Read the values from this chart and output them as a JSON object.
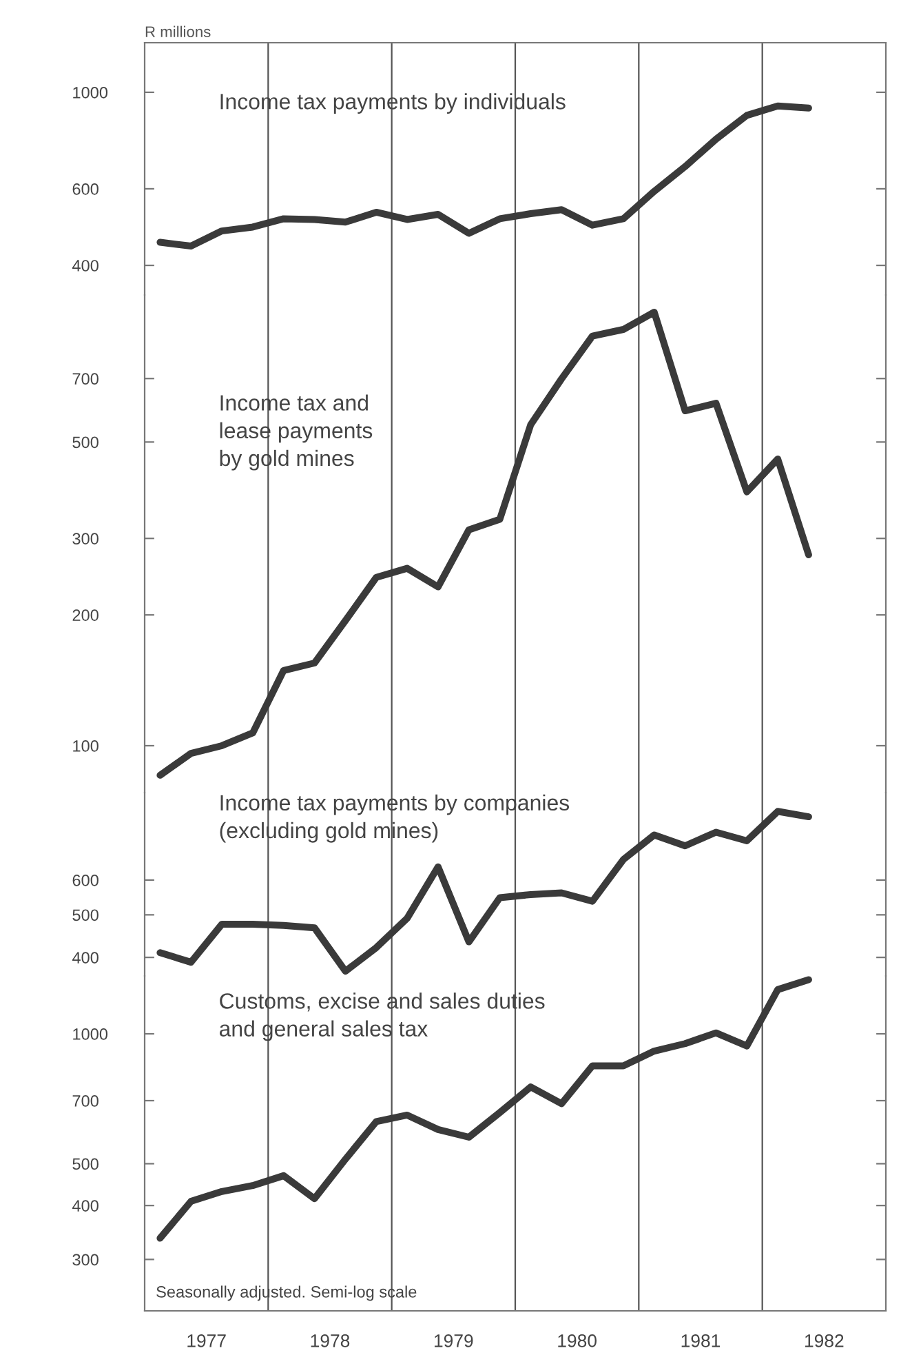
{
  "chart_data": [
    {
      "type": "line",
      "ylabel": "R millions",
      "log": true,
      "xlim": [
        1977,
        1983
      ],
      "ylim": [
        342,
        1300
      ],
      "yticks": [
        400,
        600,
        1000
      ],
      "tick_labels": "y",
      "x": [
        1977.125,
        1977.375,
        1977.625,
        1977.875,
        1978.125,
        1978.375,
        1978.625,
        1978.875,
        1979.125,
        1979.375,
        1979.625,
        1979.875,
        1980.125,
        1980.375,
        1980.625,
        1980.875,
        1981.125,
        1981.375,
        1981.625,
        1981.875,
        1982.125,
        1982.375
      ],
      "ref_lines": [
        {
          "axis": "x",
          "value": 1978
        },
        {
          "axis": "x",
          "value": 1979
        },
        {
          "axis": "x",
          "value": 1980
        },
        {
          "axis": "x",
          "value": 1981
        },
        {
          "axis": "x",
          "value": 1982
        }
      ],
      "series": [
        {
          "name": "Income tax payments by individuals",
          "color": "#3a3a3a",
          "values": [
            452,
            443,
            480,
            490,
            512,
            510,
            503,
            530,
            510,
            524,
            474,
            512,
            526,
            537,
            495,
            512,
            592,
            675,
            780,
            885,
            930,
            920
          ]
        }
      ]
    },
    {
      "type": "line",
      "log": true,
      "xlim": [
        1977,
        1983
      ],
      "ylim": [
        78,
        1090
      ],
      "yticks": [
        100,
        200,
        300,
        500,
        700
      ],
      "tick_labels": "y",
      "x": [
        1977.125,
        1977.375,
        1977.625,
        1977.875,
        1978.125,
        1978.375,
        1978.625,
        1978.875,
        1979.125,
        1979.375,
        1979.625,
        1979.875,
        1980.125,
        1980.375,
        1980.625,
        1980.875,
        1981.125,
        1981.375,
        1981.625,
        1981.875,
        1982.125,
        1982.375
      ],
      "ref_lines": [
        {
          "axis": "x",
          "value": 1978
        },
        {
          "axis": "x",
          "value": 1979
        },
        {
          "axis": "x",
          "value": 1980
        },
        {
          "axis": "x",
          "value": 1981
        },
        {
          "axis": "x",
          "value": 1982
        }
      ],
      "series": [
        {
          "name": "Income tax and\nlease payments\nby gold mines",
          "color": "#3a3a3a",
          "values": [
            85.5,
            96,
            100,
            107,
            149,
            155,
            194,
            244,
            256,
            232,
            314,
            332,
            548,
            699,
            877,
            908,
            995,
            590,
            614,
            384,
            457,
            275
          ]
        }
      ]
    },
    {
      "type": "line",
      "log": true,
      "xlim": [
        1977,
        1983
      ],
      "ylim": [
        363,
        949
      ],
      "yticks": [
        400,
        500,
        600
      ],
      "tick_labels": "y",
      "x": [
        1977.125,
        1977.375,
        1977.625,
        1977.875,
        1978.125,
        1978.375,
        1978.625,
        1978.875,
        1979.125,
        1979.375,
        1979.625,
        1979.875,
        1980.125,
        1980.375,
        1980.625,
        1980.875,
        1981.125,
        1981.375,
        1981.625,
        1981.875,
        1982.125,
        1982.375
      ],
      "ref_lines": [
        {
          "axis": "x",
          "value": 1978
        },
        {
          "axis": "x",
          "value": 1979
        },
        {
          "axis": "x",
          "value": 1980
        },
        {
          "axis": "x",
          "value": 1981
        },
        {
          "axis": "x",
          "value": 1982
        }
      ],
      "series": [
        {
          "name": "Income tax payments by companies\n(excluding gold mines)",
          "color": "#3a3a3a",
          "values": [
            410,
            390,
            476,
            476,
            473,
            467,
            372,
            421,
            491,
            643,
            434,
            547,
            556,
            561,
            537,
            668,
            760,
            718,
            771,
            737,
            860,
            836
          ]
        }
      ]
    },
    {
      "type": "line",
      "log": true,
      "xlim": [
        1977,
        1983
      ],
      "ylim": [
        228,
        1362
      ],
      "yticks": [
        300,
        400,
        500,
        700,
        1000
      ],
      "xticks": [
        {
          "value": 1977.5,
          "label": "1977"
        },
        {
          "value": 1978.5,
          "label": "1978"
        },
        {
          "value": 1979.5,
          "label": "1979"
        },
        {
          "value": 1980.5,
          "label": "1980"
        },
        {
          "value": 1981.5,
          "label": "1981"
        },
        {
          "value": 1982.5,
          "label": "1982"
        }
      ],
      "x": [
        1977.125,
        1977.375,
        1977.625,
        1977.875,
        1978.125,
        1978.375,
        1978.625,
        1978.875,
        1979.125,
        1979.375,
        1979.625,
        1979.875,
        1980.125,
        1980.375,
        1980.625,
        1980.875,
        1981.125,
        1981.375,
        1981.625,
        1981.875,
        1982.125,
        1982.375
      ],
      "ref_lines": [
        {
          "axis": "x",
          "value": 1978
        },
        {
          "axis": "x",
          "value": 1979
        },
        {
          "axis": "x",
          "value": 1980
        },
        {
          "axis": "x",
          "value": 1981
        },
        {
          "axis": "x",
          "value": 1982
        }
      ],
      "annotations": [
        "Seasonally adjusted. Semi-log scale"
      ],
      "series": [
        {
          "name": "Customs, excise and sales duties\nand general sales tax",
          "color": "#3a3a3a",
          "values": [
            336,
            409,
            431,
            445,
            469,
            415,
            512,
            626,
            648,
            600,
            576,
            657,
            753,
            689,
            843,
            843,
            912,
            949,
            1005,
            937,
            1266,
            1335
          ]
        }
      ]
    }
  ]
}
